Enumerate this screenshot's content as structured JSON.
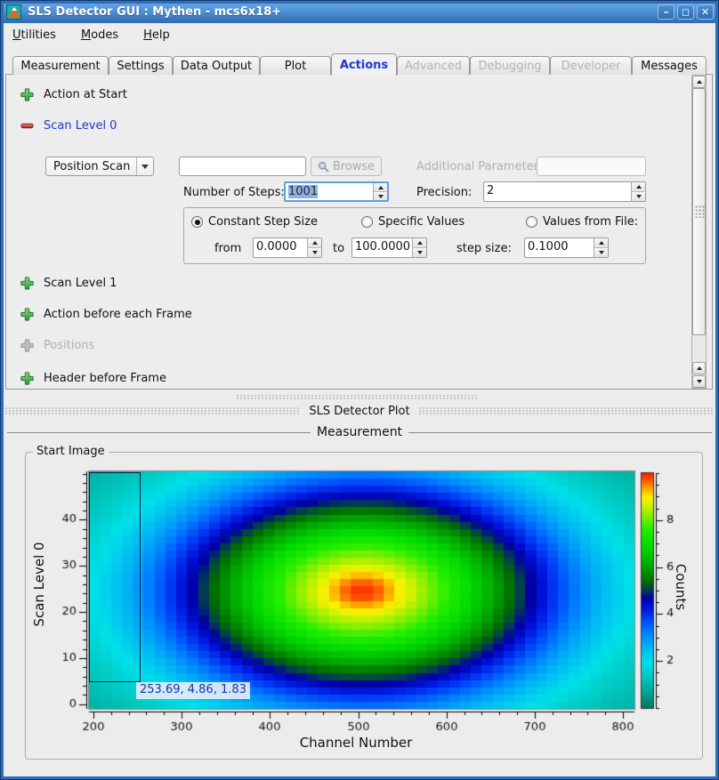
{
  "window": {
    "title": "SLS Detector GUI : Mythen - mcs6x18+",
    "buttons": {
      "minimize": "–",
      "maximize": "◻",
      "close": "✕"
    }
  },
  "menu": {
    "items": [
      "Utilities",
      "Modes",
      "Help"
    ]
  },
  "tabs": [
    {
      "label": "Measurement"
    },
    {
      "label": "Settings"
    },
    {
      "label": "Data Output"
    },
    {
      "label": "Plot"
    },
    {
      "label": "Actions"
    },
    {
      "label": "Advanced"
    },
    {
      "label": "Debugging"
    },
    {
      "label": "Developer"
    },
    {
      "label": "Messages"
    }
  ],
  "actions_tab": {
    "action_at_start": "Action at Start",
    "scan_level_0": "Scan Level 0",
    "scan_level_1": "Scan Level 1",
    "action_before_frame": "Action before each Frame",
    "positions": "Positions",
    "header_before_frame": "Header before Frame",
    "scan0": {
      "mode": "Position Scan",
      "script_value": "",
      "browse": "Browse",
      "additional_parameter_label": "Additional Parameter:",
      "additional_parameter_value": "",
      "steps_label": "Number of Steps:",
      "steps_value": "1001",
      "precision_label": "Precision:",
      "precision_value": "2",
      "radio_constant": "Constant Step Size",
      "radio_specific": "Specific Values",
      "radio_file": "Values from File:",
      "from_label": "from",
      "from_value": "0.0000",
      "to_label": "to",
      "to_value": "100.0000",
      "step_label": "step size:",
      "step_value": "0.1000"
    }
  },
  "plot_dock": {
    "title": "SLS Detector Plot",
    "section": "Measurement",
    "group": "Start Image"
  },
  "chart_data": {
    "type": "heatmap",
    "xlabel": "Channel Number",
    "ylabel": "Scan Level 0",
    "zlabel": "Counts",
    "x_range": [
      195,
      813
    ],
    "y_range": [
      -1,
      50.5
    ],
    "z_range": [
      0,
      10
    ],
    "x_major_ticks": [
      200,
      300,
      400,
      500,
      600,
      700,
      800
    ],
    "x_minor_step": 20,
    "y_major_ticks": [
      0,
      10,
      20,
      30,
      40
    ],
    "y_minor_step": 2,
    "z_major_ticks": [
      2,
      4,
      6,
      8
    ],
    "z_minor_step": 0.5,
    "grid": {
      "cols": 50,
      "rows": 33
    },
    "peak_model": {
      "center": {
        "channel": 505,
        "scan": 24.5
      },
      "baseline": 0.45,
      "broad": {
        "amp": 8.55,
        "sigma_channel": 228,
        "sigma_scan": 24
      },
      "narrow": {
        "amp": 0.9,
        "sigma_channel": 40,
        "sigma_scan": 4
      }
    },
    "colormap": [
      [
        0.0,
        "#007a66"
      ],
      [
        0.7,
        "#00a896"
      ],
      [
        1.3,
        "#00c8c0"
      ],
      [
        1.9,
        "#00e0e8"
      ],
      [
        2.6,
        "#00b4f4"
      ],
      [
        3.2,
        "#0080ff"
      ],
      [
        3.8,
        "#0040f8"
      ],
      [
        4.3,
        "#0010d8"
      ],
      [
        4.7,
        "#0000a0"
      ],
      [
        5.0,
        "#003858"
      ],
      [
        5.4,
        "#006e00"
      ],
      [
        6.0,
        "#00a400"
      ],
      [
        6.8,
        "#00d800"
      ],
      [
        7.6,
        "#20ee00"
      ],
      [
        8.2,
        "#86f000"
      ],
      [
        8.7,
        "#d8f200"
      ],
      [
        9.0,
        "#fcf000"
      ],
      [
        9.4,
        "#ffa000"
      ],
      [
        9.7,
        "#ff5a00"
      ],
      [
        10.0,
        "#ff1e00"
      ]
    ],
    "zoom_rect": {
      "x0": 195,
      "y0": 50.5,
      "x1": 253.69,
      "y1": 4.86
    },
    "cursor_readout": "253.69, 4.86, 1.83"
  },
  "colors": {
    "frame": "#2e6db8",
    "titlebar_top": "#6aa7e4",
    "titlebar_bottom": "#2f6bb0",
    "active_tab_text": "#2135cd",
    "expanded_item_text": "#2135cd",
    "disabled_text": "#b0b0b0",
    "add_icon_green": "#3aa33a",
    "remove_icon_red": "#c62828",
    "selection_bg": "#96b0cf",
    "readout_bg": "#e3edf8",
    "readout_text": "#1d2fae"
  }
}
